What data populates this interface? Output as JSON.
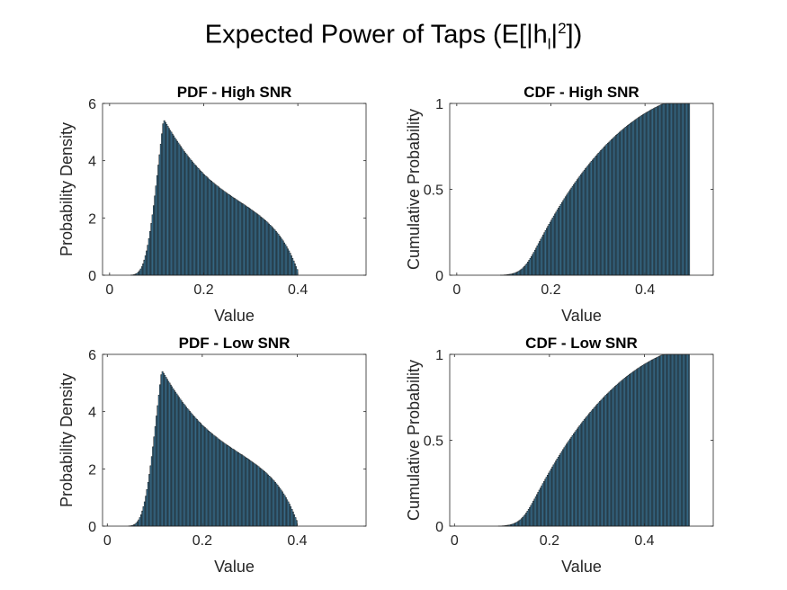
{
  "figure": {
    "title_main": "Expected Power of Taps (E[|h",
    "title_sub": "l",
    "title_mid": "|",
    "title_sup": "2",
    "title_end": "])",
    "bar_color": "#3c7a9e",
    "edge_color": "#1a1a1a"
  },
  "chart_data": [
    {
      "type": "bar",
      "title": "PDF - High SNR",
      "xlabel": "Value",
      "ylabel": "Probability Density",
      "xlim": [
        -0.015,
        0.545
      ],
      "ylim": [
        0,
        6
      ],
      "xticks": [
        0,
        0.2,
        0.4
      ],
      "xtick_labels": [
        "0",
        "0.2",
        "0.4"
      ],
      "yticks": [
        0,
        2,
        4,
        6
      ],
      "ytick_labels": [
        "0",
        "2",
        "4",
        "6"
      ],
      "bin_start": 0.0,
      "bin_width": 0.0025,
      "values": [
        0.0,
        0.0,
        0.0,
        0.0,
        0.0,
        0.0,
        0.0,
        0.0,
        0.0,
        0.0,
        0.0,
        0.0,
        0.0,
        0.0,
        0.0,
        0.0,
        0.0,
        0.0,
        0.01,
        0.01,
        0.02,
        0.03,
        0.05,
        0.07,
        0.11,
        0.16,
        0.22,
        0.3,
        0.4,
        0.53,
        0.68,
        0.85,
        1.05,
        1.28,
        1.53,
        1.81,
        2.11,
        2.43,
        2.77,
        3.12,
        3.48,
        3.85,
        4.21,
        4.58,
        4.94,
        5.29,
        5.4,
        5.34,
        5.27,
        5.2,
        5.13,
        5.06,
        5.0,
        4.93,
        4.87,
        4.8,
        4.74,
        4.68,
        4.62,
        4.56,
        4.5,
        4.44,
        4.38,
        4.32,
        4.27,
        4.22,
        4.16,
        4.11,
        4.06,
        4.01,
        3.96,
        3.91,
        3.86,
        3.82,
        3.77,
        3.73,
        3.68,
        3.64,
        3.6,
        3.55,
        3.51,
        3.47,
        3.44,
        3.4,
        3.36,
        3.32,
        3.29,
        3.25,
        3.22,
        3.18,
        3.15,
        3.12,
        3.09,
        3.05,
        3.02,
        2.99,
        2.96,
        2.93,
        2.9,
        2.87,
        2.84,
        2.82,
        2.79,
        2.76,
        2.73,
        2.7,
        2.68,
        2.65,
        2.62,
        2.59,
        2.57,
        2.54,
        2.51,
        2.49,
        2.46,
        2.43,
        2.4,
        2.38,
        2.35,
        2.32,
        2.29,
        2.26,
        2.23,
        2.2,
        2.17,
        2.14,
        2.11,
        2.08,
        2.04,
        2.01,
        1.98,
        1.94,
        1.91,
        1.87,
        1.83,
        1.79,
        1.75,
        1.71,
        1.67,
        1.62,
        1.58,
        1.53,
        1.48,
        1.43,
        1.37,
        1.32,
        1.26,
        1.2,
        1.13,
        1.07,
        1.0,
        0.92,
        0.85,
        0.77,
        0.68,
        0.59,
        0.5,
        0.4,
        0.3,
        0.2
      ]
    },
    {
      "type": "bar",
      "title": "CDF - High SNR",
      "xlabel": "Value",
      "ylabel": "Cumulative Probability",
      "xlim": [
        -0.015,
        0.545
      ],
      "ylim": [
        0,
        1
      ],
      "xticks": [
        0,
        0.2,
        0.4
      ],
      "xtick_labels": [
        "0",
        "0.2",
        "0.4"
      ],
      "yticks": [
        0,
        0.5,
        1
      ],
      "ytick_labels": [
        "0",
        "0.5",
        "1"
      ],
      "bin_start": 0.0,
      "bin_width": 0.0025,
      "values": [
        0.0,
        0.0,
        0.0,
        0.0,
        0.0,
        0.0,
        0.0,
        0.0,
        0.0,
        0.0,
        0.0,
        0.0,
        0.0,
        0.0,
        0.0,
        0.0,
        0.0,
        0.0,
        0.0,
        0.0,
        0.0,
        0.0,
        0.0,
        0.0,
        0.0,
        0.0,
        0.0,
        0.0,
        0.0,
        0.0,
        0.0,
        0.0,
        0.0,
        0.0,
        0.0,
        0.0,
        0.0,
        0.001,
        0.001,
        0.001,
        0.002,
        0.002,
        0.003,
        0.004,
        0.005,
        0.006,
        0.007,
        0.009,
        0.011,
        0.013,
        0.016,
        0.019,
        0.023,
        0.027,
        0.032,
        0.037,
        0.044,
        0.051,
        0.059,
        0.067,
        0.077,
        0.087,
        0.098,
        0.109,
        0.121,
        0.133,
        0.146,
        0.158,
        0.171,
        0.184,
        0.197,
        0.21,
        0.222,
        0.235,
        0.248,
        0.26,
        0.273,
        0.285,
        0.297,
        0.309,
        0.321,
        0.333,
        0.345,
        0.357,
        0.368,
        0.38,
        0.391,
        0.402,
        0.413,
        0.424,
        0.435,
        0.446,
        0.457,
        0.467,
        0.478,
        0.488,
        0.498,
        0.508,
        0.518,
        0.528,
        0.538,
        0.547,
        0.557,
        0.566,
        0.576,
        0.585,
        0.594,
        0.603,
        0.612,
        0.621,
        0.629,
        0.638,
        0.646,
        0.655,
        0.663,
        0.671,
        0.679,
        0.687,
        0.695,
        0.703,
        0.711,
        0.718,
        0.726,
        0.733,
        0.74,
        0.748,
        0.755,
        0.762,
        0.769,
        0.775,
        0.782,
        0.789,
        0.795,
        0.802,
        0.808,
        0.815,
        0.821,
        0.827,
        0.833,
        0.839,
        0.845,
        0.85,
        0.856,
        0.862,
        0.867,
        0.873,
        0.878,
        0.883,
        0.888,
        0.893,
        0.898,
        0.903,
        0.908,
        0.913,
        0.918,
        0.922,
        0.927,
        0.931,
        0.936,
        0.94,
        0.944,
        0.948,
        0.952,
        0.956,
        0.96,
        0.964,
        0.968,
        0.971,
        0.975,
        0.978,
        0.982,
        0.985,
        0.989,
        0.992,
        0.995,
        0.997,
        0.998,
        0.999,
        1.0,
        1.0,
        1.0,
        1.0,
        1.0,
        1.0,
        1.0,
        1.0,
        1.0,
        1.0,
        1.0,
        1.0,
        1.0,
        1.0,
        1.0,
        1.0,
        1.0,
        1.0,
        1.0,
        1.0
      ]
    },
    {
      "type": "bar",
      "title": "PDF - Low SNR",
      "xlabel": "Value",
      "ylabel": "Probability Density",
      "xlim": [
        -0.01,
        0.545
      ],
      "ylim": [
        0,
        6
      ],
      "xticks": [
        0,
        0.2,
        0.4
      ],
      "xtick_labels": [
        "0",
        "0.2",
        "0.4"
      ],
      "yticks": [
        0,
        2,
        4,
        6
      ],
      "ytick_labels": [
        "0",
        "2",
        "4",
        "6"
      ],
      "bin_start": 0.0,
      "bin_width": 0.0025,
      "values": [
        0.0,
        0.0,
        0.0,
        0.0,
        0.0,
        0.0,
        0.0,
        0.0,
        0.0,
        0.0,
        0.0,
        0.0,
        0.0,
        0.0,
        0.0,
        0.0,
        0.0,
        0.0,
        0.01,
        0.01,
        0.02,
        0.03,
        0.05,
        0.07,
        0.11,
        0.16,
        0.22,
        0.3,
        0.4,
        0.53,
        0.68,
        0.85,
        1.05,
        1.28,
        1.53,
        1.81,
        2.11,
        2.43,
        2.77,
        3.12,
        3.48,
        3.85,
        4.21,
        4.58,
        4.94,
        5.29,
        5.4,
        5.34,
        5.27,
        5.2,
        5.13,
        5.06,
        5.0,
        4.93,
        4.87,
        4.8,
        4.74,
        4.68,
        4.62,
        4.56,
        4.5,
        4.44,
        4.38,
        4.32,
        4.27,
        4.22,
        4.16,
        4.11,
        4.06,
        4.01,
        3.96,
        3.91,
        3.86,
        3.82,
        3.77,
        3.73,
        3.68,
        3.64,
        3.6,
        3.55,
        3.51,
        3.47,
        3.44,
        3.4,
        3.36,
        3.32,
        3.29,
        3.25,
        3.22,
        3.18,
        3.15,
        3.12,
        3.09,
        3.05,
        3.02,
        2.99,
        2.96,
        2.93,
        2.9,
        2.87,
        2.84,
        2.82,
        2.79,
        2.76,
        2.73,
        2.7,
        2.68,
        2.65,
        2.62,
        2.59,
        2.57,
        2.54,
        2.51,
        2.49,
        2.46,
        2.43,
        2.4,
        2.38,
        2.35,
        2.32,
        2.29,
        2.26,
        2.23,
        2.2,
        2.17,
        2.14,
        2.11,
        2.08,
        2.04,
        2.01,
        1.98,
        1.94,
        1.91,
        1.87,
        1.83,
        1.79,
        1.75,
        1.71,
        1.67,
        1.62,
        1.58,
        1.53,
        1.48,
        1.43,
        1.37,
        1.32,
        1.26,
        1.2,
        1.13,
        1.07,
        1.0,
        0.92,
        0.85,
        0.77,
        0.68,
        0.59,
        0.5,
        0.4,
        0.3,
        0.2
      ]
    },
    {
      "type": "bar",
      "title": "CDF - Low SNR",
      "xlabel": "Value",
      "ylabel": "Cumulative Probability",
      "xlim": [
        -0.01,
        0.545
      ],
      "ylim": [
        0,
        1
      ],
      "xticks": [
        0,
        0.2,
        0.4
      ],
      "xtick_labels": [
        "0",
        "0.2",
        "0.4"
      ],
      "yticks": [
        0,
        0.5,
        1
      ],
      "ytick_labels": [
        "0",
        "0.5",
        "1"
      ],
      "bin_start": 0.0,
      "bin_width": 0.0025,
      "values": [
        0.0,
        0.0,
        0.0,
        0.0,
        0.0,
        0.0,
        0.0,
        0.0,
        0.0,
        0.0,
        0.0,
        0.0,
        0.0,
        0.0,
        0.0,
        0.0,
        0.0,
        0.0,
        0.0,
        0.0,
        0.0,
        0.0,
        0.0,
        0.0,
        0.0,
        0.0,
        0.0,
        0.0,
        0.0,
        0.0,
        0.0,
        0.0,
        0.0,
        0.0,
        0.0,
        0.0,
        0.0,
        0.001,
        0.001,
        0.001,
        0.002,
        0.002,
        0.003,
        0.004,
        0.005,
        0.006,
        0.007,
        0.009,
        0.011,
        0.013,
        0.016,
        0.019,
        0.023,
        0.027,
        0.032,
        0.037,
        0.044,
        0.051,
        0.059,
        0.067,
        0.077,
        0.087,
        0.098,
        0.109,
        0.121,
        0.133,
        0.146,
        0.158,
        0.171,
        0.184,
        0.197,
        0.21,
        0.222,
        0.235,
        0.248,
        0.26,
        0.273,
        0.285,
        0.297,
        0.309,
        0.321,
        0.333,
        0.345,
        0.357,
        0.368,
        0.38,
        0.391,
        0.402,
        0.413,
        0.424,
        0.435,
        0.446,
        0.457,
        0.467,
        0.478,
        0.488,
        0.498,
        0.508,
        0.518,
        0.528,
        0.538,
        0.547,
        0.557,
        0.566,
        0.576,
        0.585,
        0.594,
        0.603,
        0.612,
        0.621,
        0.629,
        0.638,
        0.646,
        0.655,
        0.663,
        0.671,
        0.679,
        0.687,
        0.695,
        0.703,
        0.711,
        0.718,
        0.726,
        0.733,
        0.74,
        0.748,
        0.755,
        0.762,
        0.769,
        0.775,
        0.782,
        0.789,
        0.795,
        0.802,
        0.808,
        0.815,
        0.821,
        0.827,
        0.833,
        0.839,
        0.845,
        0.85,
        0.856,
        0.862,
        0.867,
        0.873,
        0.878,
        0.883,
        0.888,
        0.893,
        0.898,
        0.903,
        0.908,
        0.913,
        0.918,
        0.922,
        0.927,
        0.931,
        0.936,
        0.94,
        0.944,
        0.948,
        0.952,
        0.956,
        0.96,
        0.964,
        0.968,
        0.971,
        0.975,
        0.978,
        0.982,
        0.985,
        0.989,
        0.992,
        0.995,
        0.997,
        0.998,
        0.999,
        1.0,
        1.0,
        1.0,
        1.0,
        1.0,
        1.0,
        1.0,
        1.0,
        1.0,
        1.0,
        1.0,
        1.0,
        1.0,
        1.0,
        1.0,
        1.0,
        1.0,
        1.0,
        1.0,
        1.0
      ]
    }
  ]
}
